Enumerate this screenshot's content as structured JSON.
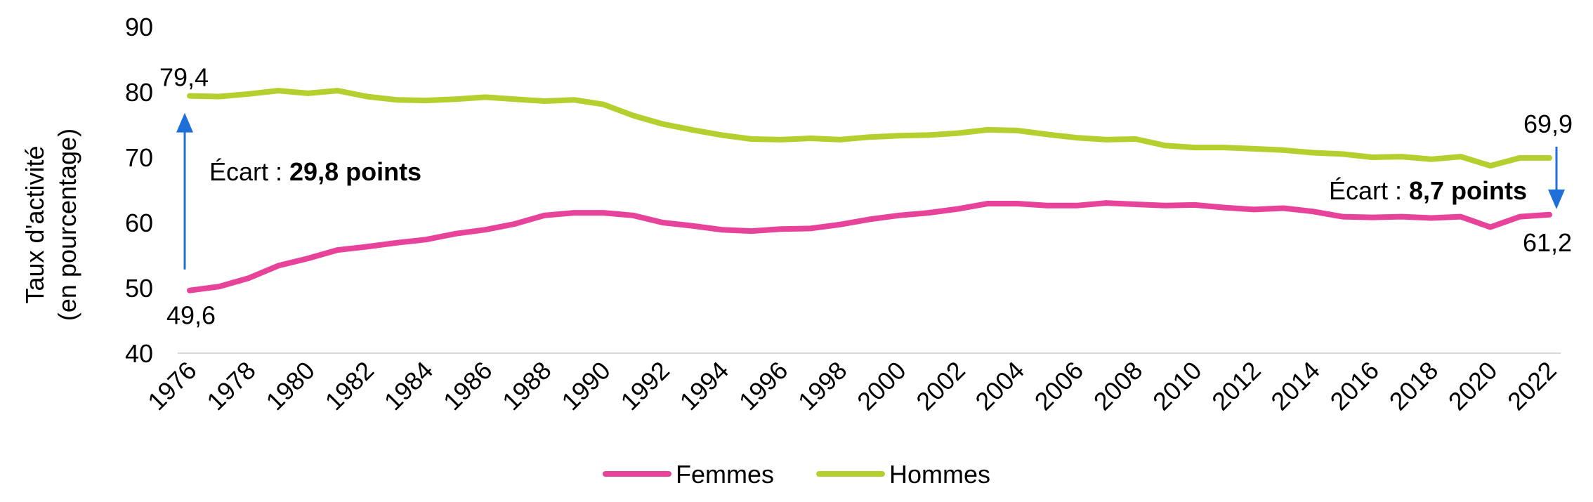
{
  "chart_data": {
    "type": "line",
    "title": "",
    "xlabel": "",
    "ylabel_lines": [
      "Taux d'activité",
      "(en pourcentage)"
    ],
    "ylim": [
      40,
      90
    ],
    "yticks": [
      40,
      50,
      60,
      70,
      80,
      90
    ],
    "x": [
      1976,
      1977,
      1978,
      1979,
      1980,
      1981,
      1982,
      1983,
      1984,
      1985,
      1986,
      1987,
      1988,
      1989,
      1990,
      1991,
      1992,
      1993,
      1994,
      1995,
      1996,
      1997,
      1998,
      1999,
      2000,
      2001,
      2002,
      2003,
      2004,
      2005,
      2006,
      2007,
      2008,
      2009,
      2010,
      2011,
      2012,
      2013,
      2014,
      2015,
      2016,
      2017,
      2018,
      2019,
      2020,
      2021,
      2022
    ],
    "xtick_labels": [
      "1976",
      "1978",
      "1980",
      "1982",
      "1984",
      "1986",
      "1988",
      "1990",
      "1992",
      "1994",
      "1996",
      "1998",
      "2000",
      "2002",
      "2004",
      "2006",
      "2008",
      "2010",
      "2012",
      "2014",
      "2016",
      "2018",
      "2020",
      "2022"
    ],
    "grid": false,
    "legend_position": "bottom",
    "series": [
      {
        "name": "Femmes",
        "color": "#e8439a",
        "values": [
          49.6,
          50.2,
          51.5,
          53.4,
          54.5,
          55.8,
          56.3,
          56.9,
          57.4,
          58.3,
          58.9,
          59.8,
          61.1,
          61.5,
          61.5,
          61.1,
          60.0,
          59.5,
          58.9,
          58.7,
          59.0,
          59.1,
          59.7,
          60.5,
          61.1,
          61.5,
          62.1,
          62.9,
          62.9,
          62.6,
          62.6,
          63.0,
          62.8,
          62.6,
          62.7,
          62.3,
          62.0,
          62.2,
          61.7,
          60.9,
          60.8,
          60.9,
          60.7,
          60.9,
          59.3,
          60.9,
          61.2
        ]
      },
      {
        "name": "Hommes",
        "color": "#b5cf2f",
        "values": [
          79.4,
          79.3,
          79.7,
          80.2,
          79.8,
          80.2,
          79.3,
          78.8,
          78.7,
          78.9,
          79.2,
          78.9,
          78.6,
          78.8,
          78.1,
          76.4,
          75.1,
          74.2,
          73.4,
          72.8,
          72.7,
          72.9,
          72.7,
          73.1,
          73.3,
          73.4,
          73.7,
          74.2,
          74.1,
          73.5,
          73.0,
          72.7,
          72.8,
          71.8,
          71.5,
          71.5,
          71.3,
          71.1,
          70.7,
          70.5,
          70.0,
          70.1,
          69.7,
          70.1,
          68.7,
          69.9,
          69.9
        ]
      }
    ],
    "annotations": {
      "start_women": "49,6",
      "start_men": "79,4",
      "end_women": "61,2",
      "end_men": "69,9",
      "gap_start_prefix": "Écart : ",
      "gap_start_value": "29,8 points",
      "gap_end_prefix": "Écart : ",
      "gap_end_value": "8,7 points",
      "arrow_color": "#1f6fd8"
    }
  }
}
